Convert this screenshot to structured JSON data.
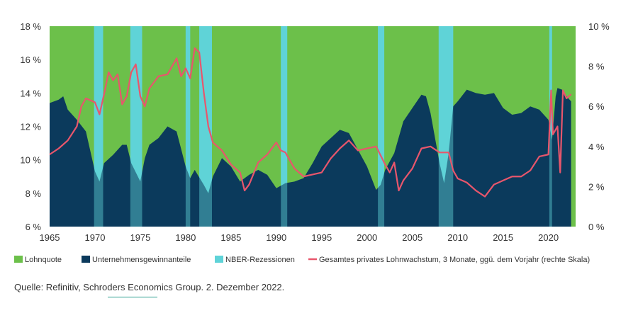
{
  "chart_data": {
    "type": "area",
    "x_range": [
      1965,
      2023
    ],
    "y_left": {
      "range": [
        6,
        18
      ],
      "ticks": [
        6,
        8,
        10,
        12,
        14,
        16,
        18
      ],
      "tick_labels": [
        "6 %",
        "8 %",
        "10 %",
        "12 %",
        "14 %",
        "16 %",
        "18 %"
      ]
    },
    "y_right": {
      "range": [
        0,
        10
      ],
      "ticks": [
        0,
        2,
        4,
        6,
        8,
        10
      ],
      "tick_labels": [
        "0 %",
        "2 %",
        "4 %",
        "6 %",
        "8 %",
        "10 %"
      ]
    },
    "x_ticks": [
      1965,
      1970,
      1975,
      1980,
      1985,
      1990,
      1995,
      2000,
      2005,
      2010,
      2015,
      2020
    ],
    "x_tick_labels": [
      "1965",
      "1970",
      "1975",
      "1980",
      "1985",
      "1990",
      "1995",
      "2000",
      "2005",
      "2010",
      "2015",
      "2020"
    ],
    "colors": {
      "lohnquote": "#6cc04a",
      "gewinne": "#0b3a5c",
      "recession": "#5fd3d8",
      "wage_line": "#e8566c"
    },
    "recessions": [
      [
        1969.9,
        1970.9
      ],
      [
        1973.9,
        1975.2
      ],
      [
        1980.0,
        1980.5
      ],
      [
        1981.5,
        1982.9
      ],
      [
        1990.5,
        1991.2
      ],
      [
        2001.2,
        2001.9
      ],
      [
        2007.9,
        2009.5
      ],
      [
        2020.1,
        2020.4
      ]
    ],
    "gewinne_series": {
      "name": "Unternehmensgewinnanteile",
      "x": [
        1965,
        1966,
        1966.5,
        1967,
        1968,
        1969,
        1970,
        1970.5,
        1971,
        1972,
        1973,
        1973.5,
        1974,
        1975,
        1975.5,
        1976,
        1977,
        1978,
        1979,
        1980,
        1980.5,
        1981,
        1982,
        1982.5,
        1983,
        1984,
        1985,
        1986,
        1987,
        1988,
        1989,
        1990,
        1991,
        1992,
        1993,
        1994,
        1995,
        1996,
        1997,
        1998,
        1999,
        2000,
        2001,
        2001.5,
        2002,
        2003,
        2004,
        2005,
        2006,
        2006.5,
        2007,
        2008,
        2008.5,
        2009,
        2009.5,
        2010,
        2011,
        2012,
        2013,
        2014,
        2015,
        2016,
        2017,
        2018,
        2019,
        2020,
        2020.4,
        2020.8,
        2021,
        2021.5,
        2022,
        2022.5
      ],
      "values": [
        13.4,
        13.6,
        13.8,
        13.0,
        12.4,
        11.7,
        9.3,
        8.7,
        9.8,
        10.3,
        10.9,
        10.9,
        9.8,
        8.7,
        10.1,
        10.9,
        11.3,
        12.0,
        11.7,
        9.6,
        8.9,
        9.4,
        8.5,
        8.0,
        9.0,
        10.1,
        9.6,
        8.7,
        9.1,
        9.4,
        9.1,
        8.3,
        8.6,
        8.7,
        8.9,
        9.8,
        10.8,
        11.3,
        11.8,
        11.6,
        10.6,
        9.6,
        8.2,
        8.5,
        9.4,
        10.4,
        12.3,
        13.1,
        13.9,
        13.8,
        12.8,
        9.8,
        8.6,
        10.4,
        13.2,
        13.5,
        14.2,
        14.0,
        13.9,
        14.0,
        13.1,
        12.7,
        12.8,
        13.2,
        13.0,
        12.4,
        11.2,
        13.8,
        14.3,
        14.2,
        13.8,
        13.5
      ]
    },
    "wage_series": {
      "name": "Gesamtes privates Lohnwachstum, 3 Monate, ggü. dem Vorjahr (rechte Skala)",
      "axis": "right",
      "x": [
        1965,
        1966,
        1967,
        1968,
        1968.5,
        1969,
        1970,
        1970.5,
        1971,
        1971.5,
        1972,
        1972.5,
        1973,
        1973.5,
        1974,
        1974.5,
        1975,
        1975.5,
        1976,
        1977,
        1978,
        1979,
        1979.5,
        1980,
        1980.5,
        1981,
        1981.5,
        1982,
        1982.5,
        1983,
        1984,
        1985,
        1986,
        1986.5,
        1987,
        1988,
        1989,
        1990,
        1990.5,
        1991,
        1992,
        1993,
        1994,
        1995,
        1996,
        1997,
        1998,
        1999,
        2000,
        2001,
        2002,
        2002.5,
        2003,
        2003.5,
        2004,
        2005,
        2006,
        2007,
        2008,
        2009,
        2009.5,
        2010,
        2011,
        2012,
        2013,
        2014,
        2015,
        2016,
        2017,
        2018,
        2019,
        2020,
        2020.3,
        2020.5,
        2021,
        2021.3,
        2021.6,
        2022,
        2022.5
      ],
      "values": [
        3.6,
        3.9,
        4.3,
        5.0,
        6.0,
        6.4,
        6.2,
        5.6,
        6.6,
        7.7,
        7.3,
        7.6,
        6.1,
        6.5,
        7.7,
        8.1,
        6.5,
        6.0,
        6.9,
        7.5,
        7.6,
        8.4,
        7.5,
        7.9,
        7.4,
        8.9,
        8.7,
        6.7,
        5.0,
        4.2,
        3.8,
        3.1,
        2.7,
        1.8,
        2.1,
        3.2,
        3.6,
        4.2,
        3.8,
        3.7,
        2.9,
        2.5,
        2.6,
        2.7,
        3.4,
        3.9,
        4.3,
        3.8,
        3.9,
        4.0,
        3.1,
        2.7,
        3.2,
        1.8,
        2.3,
        2.9,
        3.9,
        4.0,
        3.7,
        3.7,
        2.8,
        2.4,
        2.2,
        1.8,
        1.5,
        2.1,
        2.3,
        2.5,
        2.5,
        2.8,
        3.5,
        3.6,
        6.8,
        4.6,
        5.0,
        2.7,
        6.8,
        6.4,
        6.6
      ]
    },
    "legend": [
      {
        "label": "Lohnquote",
        "color": "#6cc04a",
        "kind": "box"
      },
      {
        "label": "Unternehmensgewinnanteile",
        "color": "#0b3a5c",
        "kind": "box"
      },
      {
        "label": "NBER-Rezessionen",
        "color": "#5fd3d8",
        "kind": "box"
      },
      {
        "label": "Gesamtes privates Lohnwachstum, 3 Monate, ggü. dem Vorjahr (rechte Skala)",
        "color": "#e8566c",
        "kind": "line"
      }
    ]
  },
  "source": "Quelle: Refinitiv, Schroders Economics Group. 2. Dezember 2022."
}
